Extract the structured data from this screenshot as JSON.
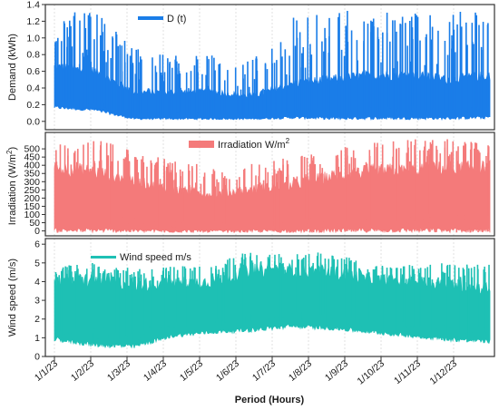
{
  "chart_data": {
    "type": "line",
    "xlabel": "Period (Hours)",
    "x_ticks": [
      "1/1/23",
      "1/2/23",
      "1/3/23",
      "1/4/23",
      "1/5/23",
      "1/6/23",
      "1/7/23",
      "1/8/23",
      "1/9/23",
      "1/10/23",
      "1/11/23",
      "1/12/23"
    ],
    "x_range_hours": [
      0,
      8760
    ],
    "grid": "vertical dashed",
    "legend_placement": "top-center",
    "panels": [
      {
        "ylabel": "Demand (kWh)",
        "series_name": "D (t)",
        "color": "#1a7de8",
        "ylim": [
          -0.1,
          1.4
        ],
        "yticks": [
          "0.0",
          "0.2",
          "0.4",
          "0.6",
          "0.8",
          "1.0",
          "1.2",
          "1.4"
        ],
        "ytick_values": [
          0,
          0.2,
          0.4,
          0.6,
          0.8,
          1.0,
          1.2,
          1.4
        ],
        "monthly_envelope": {
          "low": [
            0.15,
            0.12,
            0.02,
            0.02,
            0.02,
            0.02,
            0.03,
            0.02,
            0.02,
            0.02,
            0.02,
            0.03
          ],
          "base_high": [
            0.65,
            0.6,
            0.35,
            0.35,
            0.35,
            0.3,
            0.45,
            0.5,
            0.55,
            0.55,
            0.5,
            0.55
          ],
          "peak": [
            1.3,
            1.33,
            0.9,
            0.8,
            0.8,
            0.75,
            1.3,
            1.33,
            1.33,
            1.33,
            1.33,
            1.33
          ]
        }
      },
      {
        "ylabel": "Irradiation (W/m²)",
        "series_name": "Irradiation W/m²",
        "color": "#f47a7a",
        "ylim": [
          -30,
          600
        ],
        "yticks": [
          "0",
          "50",
          "100",
          "150",
          "200",
          "250",
          "300",
          "350",
          "400",
          "450",
          "500"
        ],
        "ytick_values": [
          0,
          50,
          100,
          150,
          200,
          250,
          300,
          350,
          400,
          450,
          500
        ],
        "monthly_envelope": {
          "low": [
            -10,
            -10,
            -10,
            -10,
            -10,
            -10,
            -10,
            -10,
            -10,
            -10,
            -10,
            -10
          ],
          "base_high": [
            380,
            360,
            300,
            250,
            220,
            250,
            280,
            330,
            360,
            370,
            380,
            380
          ],
          "peak": [
            520,
            580,
            480,
            440,
            400,
            420,
            450,
            500,
            540,
            560,
            580,
            520
          ]
        }
      },
      {
        "ylabel": "Wind speed (m/s)",
        "series_name": "Wind speed m/s",
        "color": "#1ec0b4",
        "ylim": [
          0,
          6.3
        ],
        "yticks": [
          "0",
          "1",
          "2",
          "3",
          "4",
          "5",
          "6"
        ],
        "ytick_values": [
          0,
          1,
          2,
          3,
          4,
          5,
          6
        ],
        "monthly_envelope": {
          "low": [
            0.8,
            0.5,
            0.4,
            1.0,
            1.2,
            1.3,
            1.5,
            1.4,
            1.2,
            1.0,
            0.8,
            0.7
          ],
          "base_high": [
            4.0,
            4.1,
            3.8,
            3.9,
            4.0,
            4.6,
            4.6,
            4.5,
            4.1,
            4.0,
            3.9,
            3.6
          ],
          "peak": [
            4.8,
            5.0,
            4.7,
            4.8,
            5.0,
            5.7,
            5.5,
            5.6,
            4.9,
            4.9,
            5.0,
            4.9
          ]
        }
      }
    ]
  }
}
